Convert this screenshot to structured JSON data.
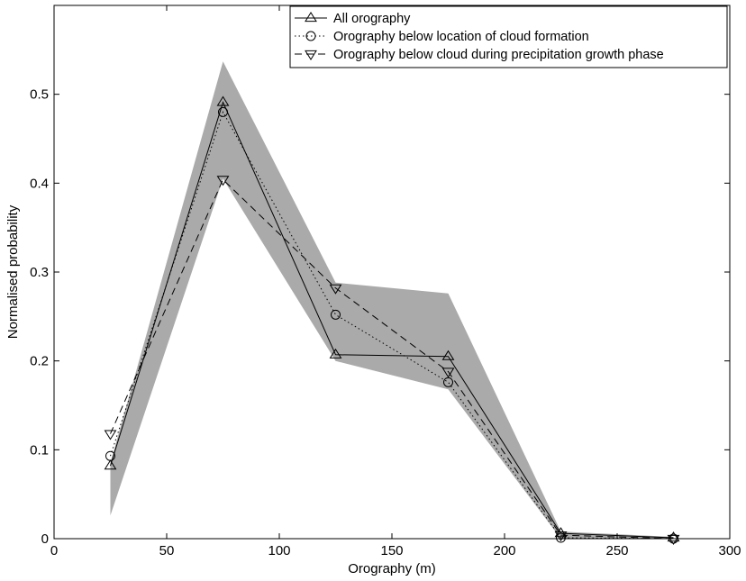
{
  "chart_data": {
    "type": "line",
    "xlabel": "Orography (m)",
    "ylabel": "Normalised probability",
    "xlim": [
      0,
      300
    ],
    "ylim": [
      0,
      0.6
    ],
    "xticks": [
      0,
      50,
      100,
      150,
      200,
      250,
      300
    ],
    "yticks": [
      0,
      0.1,
      0.2,
      0.3,
      0.4,
      0.5
    ],
    "x": [
      25,
      75,
      125,
      175,
      225,
      275
    ],
    "band": {
      "upper": [
        0.085,
        0.537,
        0.288,
        0.276,
        0.008,
        0.002
      ],
      "lower": [
        0.026,
        0.405,
        0.2,
        0.168,
        0.0,
        0.0
      ],
      "color": "#aaaaaa"
    },
    "series": [
      {
        "name": "All orography",
        "values": [
          0.082,
          0.491,
          0.207,
          0.205,
          0.006,
          0.001
        ],
        "marker": "triangle-up",
        "dash": "solid"
      },
      {
        "name": "Orography below location of cloud formation",
        "values": [
          0.093,
          0.48,
          0.252,
          0.176,
          0.001,
          0.0
        ],
        "marker": "circle",
        "dash": "dotted"
      },
      {
        "name": "Orography below cloud during precipitation growth phase",
        "values": [
          0.118,
          0.404,
          0.282,
          0.188,
          0.004,
          0.0
        ],
        "marker": "triangle-down",
        "dash": "dashed"
      }
    ],
    "legend_position": "top-right",
    "grid": false
  }
}
